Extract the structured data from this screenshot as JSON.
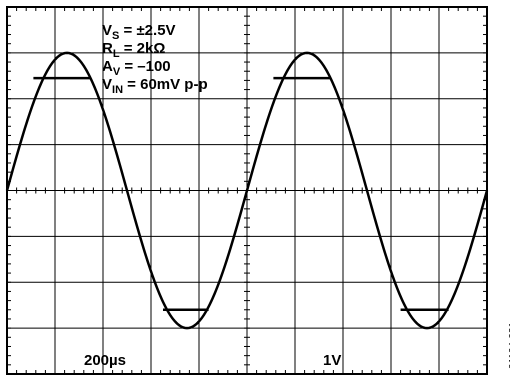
{
  "conditions": {
    "vs": {
      "main": "V",
      "sub": "S",
      "rest": " = ±2.5V"
    },
    "rl": {
      "main": "R",
      "sub": "L",
      "rest": " = 2kΩ"
    },
    "av": {
      "main": "A",
      "sub": "V",
      "rest": " = –100"
    },
    "vin": {
      "main": "V",
      "sub": "IN",
      "rest": " = 60mV p-p"
    }
  },
  "time_scale": "200µs",
  "volt_scale": "1V",
  "figure_id": "01104-031",
  "chart_data": {
    "type": "line",
    "title": "",
    "xlabel": "",
    "ylabel": "",
    "x_units": "div",
    "y_units": "div",
    "xlim": [
      0,
      10
    ],
    "ylim": [
      -4,
      4
    ],
    "grid": true,
    "series": [
      {
        "waveform": "sine",
        "amplitude_div": 3,
        "period_div": 5,
        "peak_x_div": 1.25,
        "x": [
          0,
          0.25,
          0.5,
          0.75,
          1.0,
          1.25,
          1.5,
          1.75,
          2.0,
          2.25,
          2.5,
          2.75,
          3.0,
          3.25,
          3.5,
          3.75,
          4.0,
          4.25,
          4.5,
          4.75,
          5.0,
          5.25,
          5.5,
          5.75,
          6.0,
          6.25,
          6.5,
          6.75,
          7.0,
          7.25,
          7.5,
          7.75,
          8.0,
          8.25,
          8.5,
          8.75,
          9.0,
          9.25,
          9.5,
          9.75,
          10.0
        ],
        "y": [
          0,
          0.93,
          1.76,
          2.43,
          2.85,
          3.0,
          2.85,
          2.43,
          1.76,
          0.93,
          0,
          -0.93,
          -1.76,
          -2.43,
          -2.85,
          -3.0,
          -2.85,
          -2.43,
          -1.76,
          -0.93,
          0,
          0.93,
          1.76,
          2.43,
          2.85,
          3.0,
          2.85,
          2.43,
          1.76,
          0.93,
          0,
          -0.93,
          -1.76,
          -2.43,
          -2.85,
          -3.0,
          -2.85,
          -2.43,
          -1.76,
          -0.93,
          0
        ]
      }
    ],
    "markers": [
      {
        "x_from": 0.55,
        "x_to": 1.75,
        "y": 2.45
      },
      {
        "x_from": 3.25,
        "x_to": 4.2,
        "y": -2.6
      },
      {
        "x_from": 5.55,
        "x_to": 6.75,
        "y": 2.45
      },
      {
        "x_from": 8.2,
        "x_to": 9.2,
        "y": -2.6
      }
    ]
  }
}
